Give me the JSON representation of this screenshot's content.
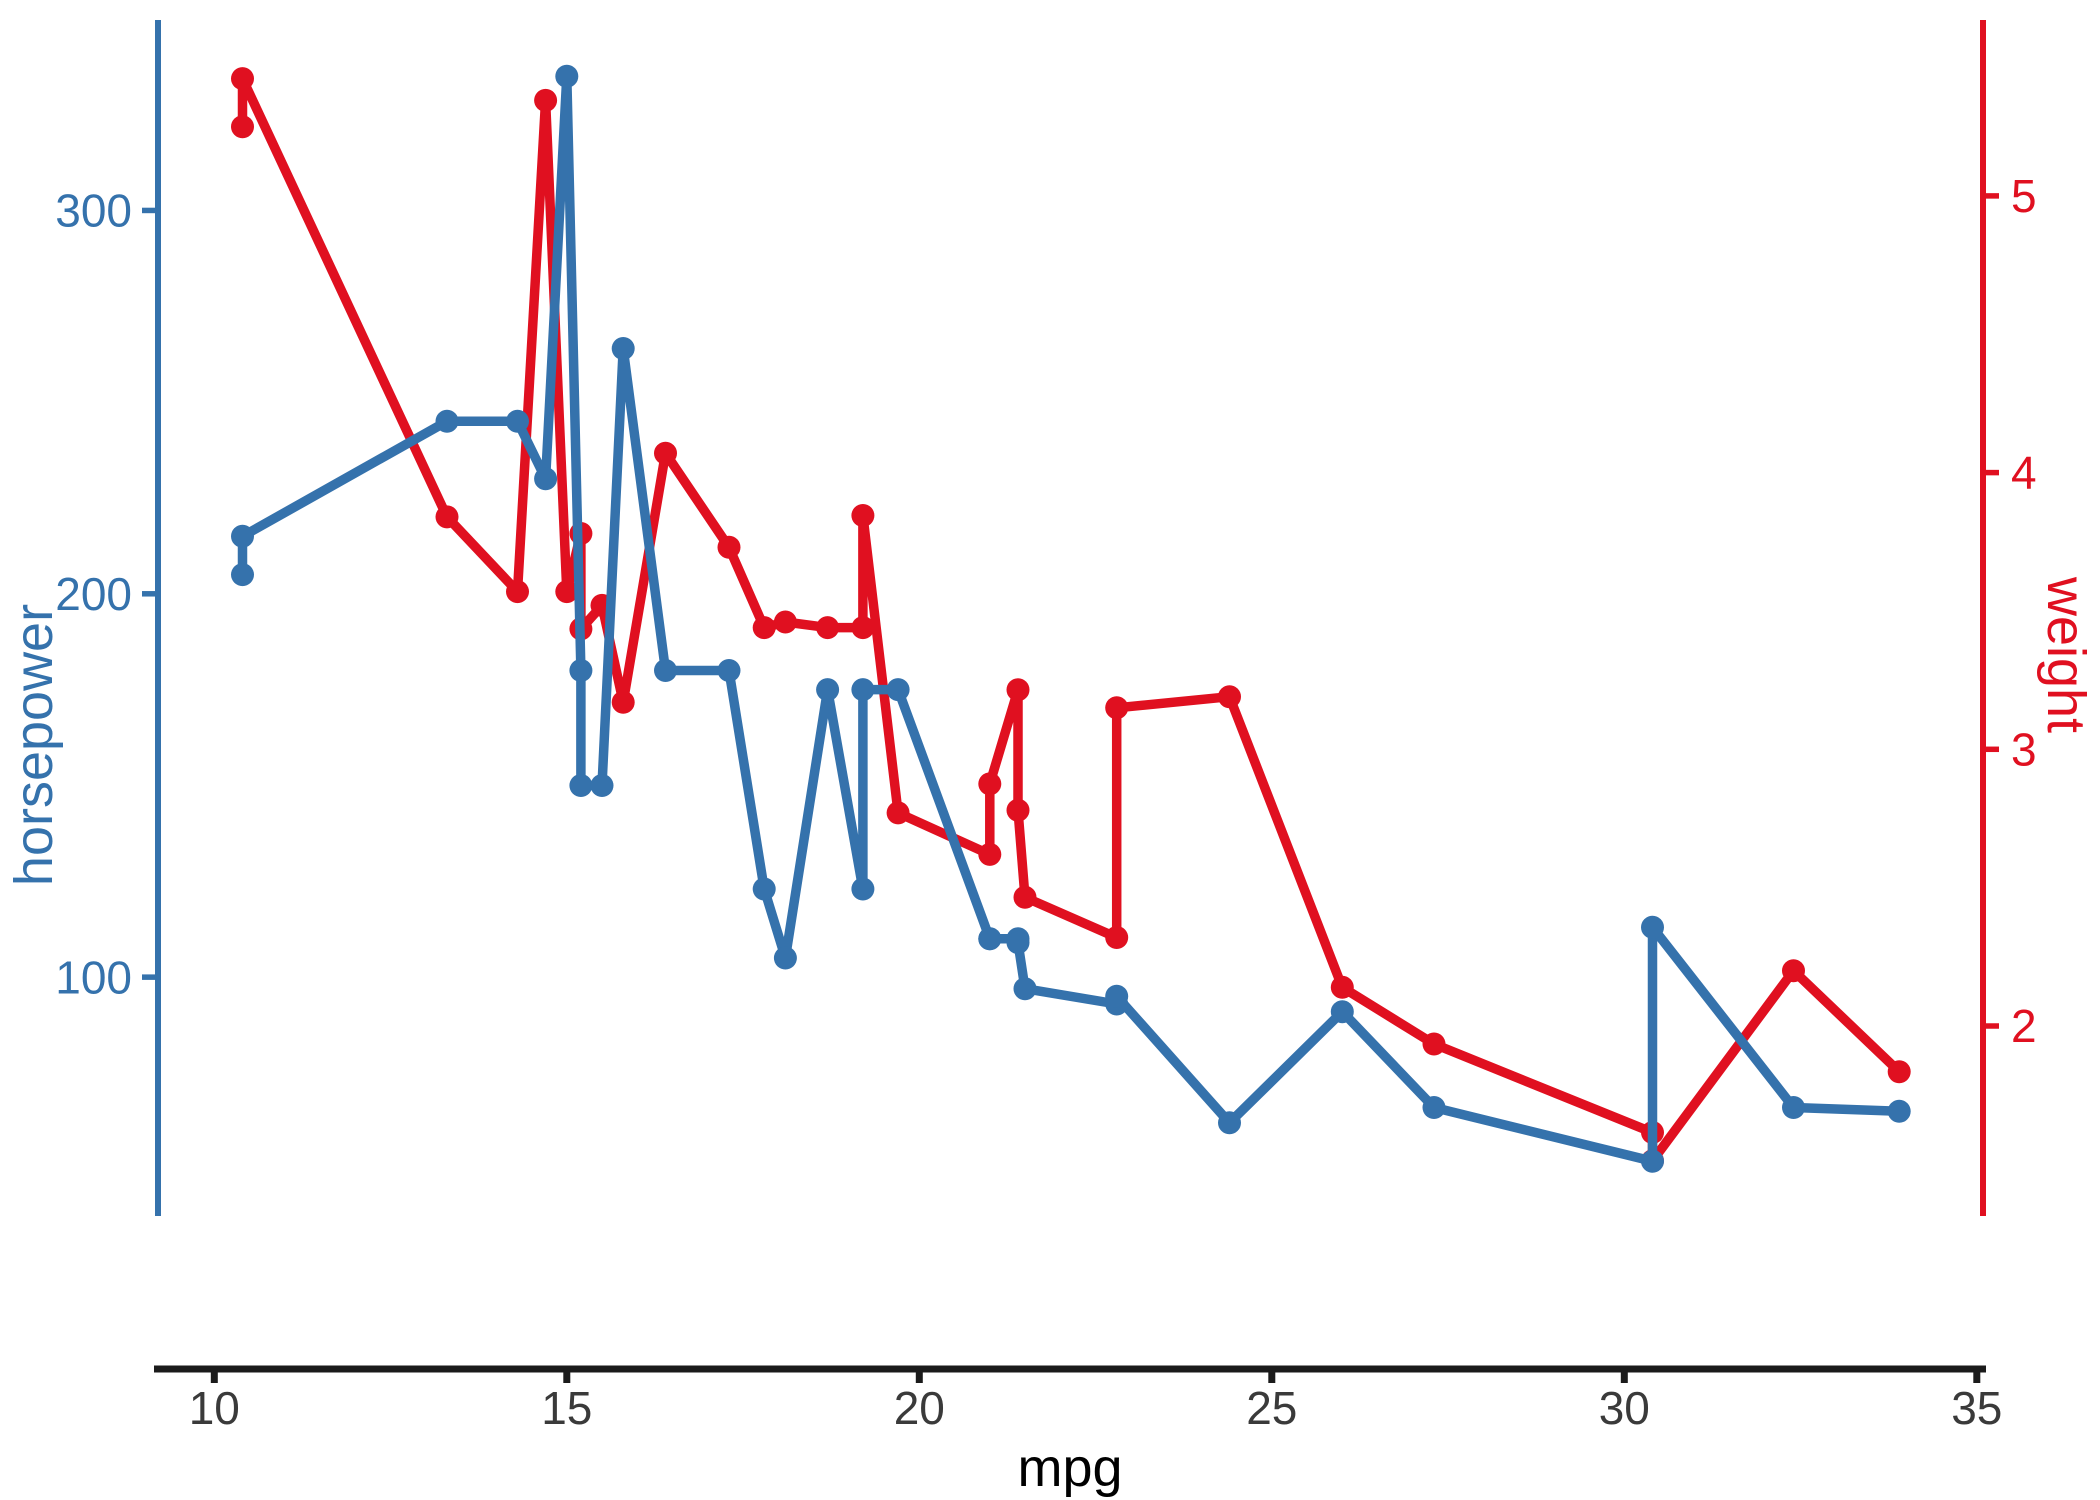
{
  "chart_data": {
    "type": "line",
    "description": "Dual-axis line-and-point chart: horsepower (left, blue) and weight (right, red) versus mpg",
    "grid": false,
    "legend": "none",
    "background": "#ffffff",
    "x_axis": {
      "label": "mpg",
      "tick_values": [
        10,
        15,
        20,
        25,
        30,
        35
      ],
      "range": [
        9.2,
        35.1
      ],
      "title_color": "#000000",
      "tick_label_color": "#3a3a3a",
      "line_color": "#1b1b1b"
    },
    "left_axis": {
      "label": "horsepower",
      "tick_values": [
        100,
        200,
        300
      ],
      "range": [
        38,
        349
      ],
      "color": "#3572AC"
    },
    "right_axis": {
      "label": "weight",
      "tick_values": [
        2,
        3,
        4,
        5
      ],
      "range": [
        1.32,
        5.63
      ],
      "color": "#E01020"
    },
    "series": [
      {
        "name": "weight",
        "axis": "right",
        "color": "#E01020",
        "marker": "circle",
        "points": [
          {
            "x": 10.4,
            "y": 5.25
          },
          {
            "x": 10.4,
            "y": 5.424
          },
          {
            "x": 13.3,
            "y": 3.84
          },
          {
            "x": 14.3,
            "y": 3.57
          },
          {
            "x": 14.7,
            "y": 5.345
          },
          {
            "x": 15.0,
            "y": 3.57
          },
          {
            "x": 15.2,
            "y": 3.78
          },
          {
            "x": 15.2,
            "y": 3.435
          },
          {
            "x": 15.5,
            "y": 3.52
          },
          {
            "x": 15.8,
            "y": 3.17
          },
          {
            "x": 16.4,
            "y": 4.07
          },
          {
            "x": 17.3,
            "y": 3.73
          },
          {
            "x": 17.8,
            "y": 3.44
          },
          {
            "x": 18.1,
            "y": 3.46
          },
          {
            "x": 18.7,
            "y": 3.44
          },
          {
            "x": 19.2,
            "y": 3.44
          },
          {
            "x": 19.2,
            "y": 3.845
          },
          {
            "x": 19.7,
            "y": 2.77
          },
          {
            "x": 21.0,
            "y": 2.62
          },
          {
            "x": 21.0,
            "y": 2.875
          },
          {
            "x": 21.4,
            "y": 3.215
          },
          {
            "x": 21.4,
            "y": 2.78
          },
          {
            "x": 21.5,
            "y": 2.465
          },
          {
            "x": 22.8,
            "y": 2.32
          },
          {
            "x": 22.8,
            "y": 3.15
          },
          {
            "x": 24.4,
            "y": 3.19
          },
          {
            "x": 26.0,
            "y": 2.14
          },
          {
            "x": 27.3,
            "y": 1.935
          },
          {
            "x": 30.4,
            "y": 1.615
          },
          {
            "x": 30.4,
            "y": 1.513
          },
          {
            "x": 32.4,
            "y": 2.2
          },
          {
            "x": 33.9,
            "y": 1.835
          }
        ]
      },
      {
        "name": "horsepower",
        "axis": "left",
        "color": "#3572AC",
        "marker": "circle",
        "points": [
          {
            "x": 10.4,
            "y": 205
          },
          {
            "x": 10.4,
            "y": 215
          },
          {
            "x": 13.3,
            "y": 245
          },
          {
            "x": 14.3,
            "y": 245
          },
          {
            "x": 14.7,
            "y": 230
          },
          {
            "x": 15.0,
            "y": 335
          },
          {
            "x": 15.2,
            "y": 180
          },
          {
            "x": 15.2,
            "y": 150
          },
          {
            "x": 15.5,
            "y": 150
          },
          {
            "x": 15.8,
            "y": 264
          },
          {
            "x": 16.4,
            "y": 180
          },
          {
            "x": 17.3,
            "y": 180
          },
          {
            "x": 17.8,
            "y": 123
          },
          {
            "x": 18.1,
            "y": 105
          },
          {
            "x": 18.7,
            "y": 175
          },
          {
            "x": 19.2,
            "y": 123
          },
          {
            "x": 19.2,
            "y": 175
          },
          {
            "x": 19.7,
            "y": 175
          },
          {
            "x": 21.0,
            "y": 110
          },
          {
            "x": 21.0,
            "y": 110
          },
          {
            "x": 21.4,
            "y": 110
          },
          {
            "x": 21.4,
            "y": 109
          },
          {
            "x": 21.5,
            "y": 97
          },
          {
            "x": 22.8,
            "y": 93
          },
          {
            "x": 22.8,
            "y": 95
          },
          {
            "x": 24.4,
            "y": 62
          },
          {
            "x": 26.0,
            "y": 91
          },
          {
            "x": 27.3,
            "y": 66
          },
          {
            "x": 30.4,
            "y": 52
          },
          {
            "x": 30.4,
            "y": 113
          },
          {
            "x": 32.4,
            "y": 66
          },
          {
            "x": 33.9,
            "y": 65
          }
        ]
      }
    ]
  }
}
